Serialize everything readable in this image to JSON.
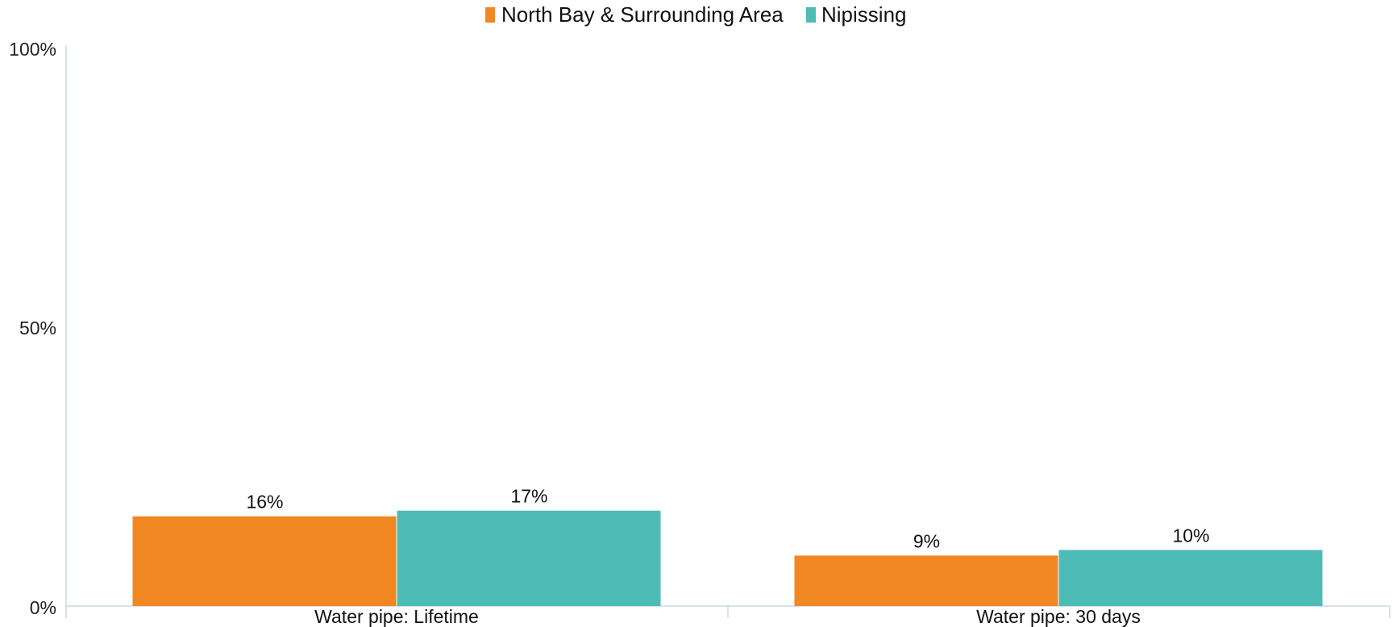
{
  "legend": [
    {
      "name": "North Bay & Surrounding Area",
      "color": "#f08723"
    },
    {
      "name": "Nipissing",
      "color": "#4dbbb6"
    }
  ],
  "y_ticks": [
    {
      "value": 0,
      "label": "0%"
    },
    {
      "value": 50,
      "label": "50%"
    },
    {
      "value": 100,
      "label": "100%"
    }
  ],
  "chart_data": {
    "type": "bar",
    "categories": [
      "Water pipe: Lifetime",
      "Water pipe: 30 days"
    ],
    "series": [
      {
        "name": "North Bay & Surrounding Area",
        "color": "#f08723",
        "values": [
          16,
          9
        ],
        "labels": [
          "16%",
          "9%"
        ]
      },
      {
        "name": "Nipissing",
        "color": "#4dbbb6",
        "values": [
          17,
          10
        ],
        "labels": [
          "17%",
          "10%"
        ]
      }
    ],
    "ylim": [
      0,
      100
    ],
    "grid": false,
    "legend_position": "top-center"
  }
}
